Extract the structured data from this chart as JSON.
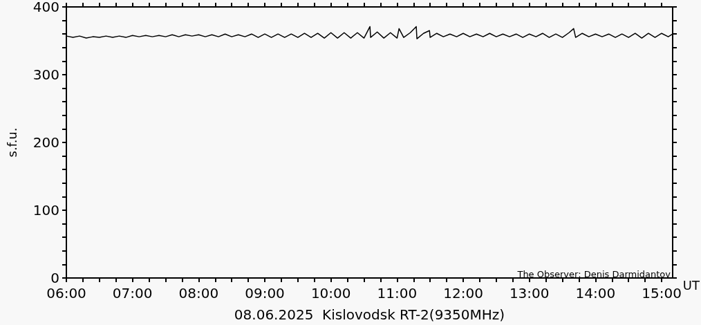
{
  "chart_data": {
    "type": "line",
    "xlabel": "08.06.2025  Kislovodsk RT-2(9350MHz)",
    "ylabel": "s.f.u.",
    "annotations": [
      "The Observer: Denis Darmidantov",
      "UT"
    ],
    "x": [
      6.0,
      6.1,
      6.2,
      6.3,
      6.4,
      6.5,
      6.6,
      6.7,
      6.8,
      6.9,
      7.0,
      7.1,
      7.2,
      7.3,
      7.4,
      7.5,
      7.6,
      7.7,
      7.8,
      7.9,
      8.0,
      8.1,
      8.2,
      8.3,
      8.4,
      8.5,
      8.6,
      8.7,
      8.8,
      8.9,
      9.0,
      9.1,
      9.2,
      9.3,
      9.4,
      9.5,
      9.6,
      9.7,
      9.8,
      9.9,
      10.0,
      10.1,
      10.2,
      10.3,
      10.4,
      10.5,
      10.59,
      10.6,
      10.7,
      10.8,
      10.9,
      11.0,
      11.03,
      11.1,
      11.2,
      11.29,
      11.3,
      11.4,
      11.49,
      11.5,
      11.6,
      11.7,
      11.8,
      11.9,
      12.0,
      12.1,
      12.2,
      12.3,
      12.4,
      12.5,
      12.6,
      12.7,
      12.8,
      12.9,
      13.0,
      13.1,
      13.2,
      13.3,
      13.4,
      13.5,
      13.6,
      13.67,
      13.7,
      13.8,
      13.9,
      14.0,
      14.1,
      14.2,
      14.3,
      14.4,
      14.5,
      14.6,
      14.7,
      14.8,
      14.9,
      15.0,
      15.1,
      15.1667
    ],
    "series": [
      {
        "color": "#000000",
        "values": [
          357,
          355,
          357,
          354,
          356,
          355,
          357,
          355,
          357,
          355,
          358,
          356,
          358,
          356,
          358,
          356,
          359,
          356,
          359,
          357,
          359,
          356,
          359,
          356,
          360,
          356,
          359,
          356,
          360,
          355,
          360,
          355,
          360,
          355,
          360,
          355,
          361,
          355,
          361,
          354,
          362,
          354,
          362,
          354,
          362,
          354,
          371,
          355,
          363,
          354,
          362,
          354,
          368,
          355,
          362,
          371,
          353,
          361,
          365,
          355,
          361,
          356,
          360,
          356,
          361,
          356,
          360,
          356,
          361,
          356,
          360,
          356,
          360,
          355,
          360,
          356,
          361,
          355,
          360,
          355,
          362,
          368,
          355,
          361,
          356,
          360,
          356,
          360,
          355,
          360,
          355,
          361,
          354,
          361,
          355,
          361,
          356,
          360
        ]
      }
    ],
    "xlim": [
      6,
      15.1667
    ],
    "xticks": [
      {
        "value": 6,
        "label": "06:00"
      },
      {
        "value": 6.25,
        "label": null
      },
      {
        "value": 6.5,
        "label": null
      },
      {
        "value": 6.75,
        "label": null
      },
      {
        "value": 7,
        "label": "07:00"
      },
      {
        "value": 7.25,
        "label": null
      },
      {
        "value": 7.5,
        "label": null
      },
      {
        "value": 7.75,
        "label": null
      },
      {
        "value": 8,
        "label": "08:00"
      },
      {
        "value": 8.25,
        "label": null
      },
      {
        "value": 8.5,
        "label": null
      },
      {
        "value": 8.75,
        "label": null
      },
      {
        "value": 9,
        "label": "09:00"
      },
      {
        "value": 9.25,
        "label": null
      },
      {
        "value": 9.5,
        "label": null
      },
      {
        "value": 9.75,
        "label": null
      },
      {
        "value": 10,
        "label": "10:00"
      },
      {
        "value": 10.25,
        "label": null
      },
      {
        "value": 10.5,
        "label": null
      },
      {
        "value": 10.75,
        "label": null
      },
      {
        "value": 11,
        "label": "11:00"
      },
      {
        "value": 11.25,
        "label": null
      },
      {
        "value": 11.5,
        "label": null
      },
      {
        "value": 11.75,
        "label": null
      },
      {
        "value": 12,
        "label": "12:00"
      },
      {
        "value": 12.25,
        "label": null
      },
      {
        "value": 12.5,
        "label": null
      },
      {
        "value": 12.75,
        "label": null
      },
      {
        "value": 13,
        "label": "13:00"
      },
      {
        "value": 13.25,
        "label": null
      },
      {
        "value": 13.5,
        "label": null
      },
      {
        "value": 13.75,
        "label": null
      },
      {
        "value": 14,
        "label": "14:00"
      },
      {
        "value": 14.25,
        "label": null
      },
      {
        "value": 14.5,
        "label": null
      },
      {
        "value": 14.75,
        "label": null
      },
      {
        "value": 15,
        "label": "15:00"
      }
    ],
    "ylim": [
      0,
      400
    ],
    "yticks": [
      0,
      {
        "value": 20,
        "label": null
      },
      {
        "value": 40,
        "label": null
      },
      {
        "value": 60,
        "label": null
      },
      {
        "value": 80,
        "label": null
      },
      100,
      {
        "value": 120,
        "label": null
      },
      {
        "value": 140,
        "label": null
      },
      {
        "value": 160,
        "label": null
      },
      {
        "value": 180,
        "label": null
      },
      200,
      {
        "value": 220,
        "label": null
      },
      {
        "value": 240,
        "label": null
      },
      {
        "value": 260,
        "label": null
      },
      {
        "value": 280,
        "label": null
      },
      300,
      {
        "value": 320,
        "label": null
      },
      {
        "value": 340,
        "label": null
      },
      {
        "value": 360,
        "label": null
      },
      {
        "value": 380,
        "label": null
      },
      400
    ],
    "grid": false,
    "marker": "none",
    "line_style": "solid"
  }
}
